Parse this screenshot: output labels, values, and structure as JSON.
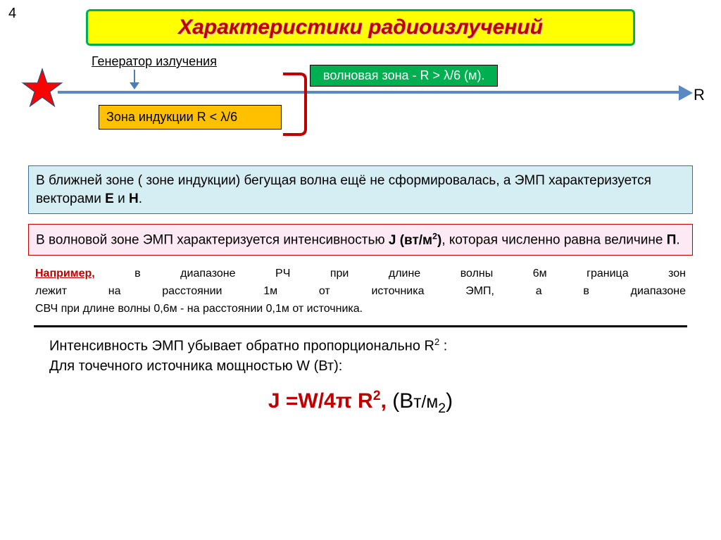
{
  "page_number": "4",
  "title": {
    "text": "Характеристики радиоизлучений",
    "bg_color": "#ffff00",
    "border_color": "#00b050",
    "text_color": "#c00000",
    "shadow_color": "#aaaaaa",
    "font_size": 30
  },
  "diagram": {
    "generator_label": "Генератор  излучения",
    "generator_arrow_color": "#4a7ebb",
    "star_fill": "#ff0000",
    "star_stroke": "#1f4e79",
    "axis_color": "#5a8ac6",
    "axis_label": "R",
    "wave_zone": {
      "text": "волновая зона - R >  λ/6 (м).",
      "bg_color": "#00b050",
      "text_color": "#ffffff",
      "border_color": "#000000"
    },
    "induction_zone": {
      "text": "Зона индукции R < λ/6",
      "bg_color": "#ffc000",
      "text_color": "#000000",
      "border_color": "#000000"
    },
    "bracket_color": "#c00000"
  },
  "near_zone_box": {
    "html": "В ближней зоне ( зоне индукции) бегущая волна ещё не сформировалась, а ЭМП    характеризуется векторами <b>Е</b> и <b>Н</b>.",
    "bg_color": "#d4eef4",
    "border_color": "#3a6ea5"
  },
  "wave_zone_box": {
    "html": "В волновой зоне ЭМП характеризуется  интенсивностью   <b>J  (вт/м<span class=\"sup\">2</span>)</b>, которая численно равна величине <b>П</b>.",
    "bg_color": "#fde9f3",
    "border_color": "#c00000"
  },
  "example": {
    "lead": "Например,",
    "line1_rest": "    в    диапазоне    РЧ    при    длине    волны    6м    граница    зон",
    "line2": "лежит    на    расстоянии    1м    от    источника    ЭМП,    а    в    диапазоне",
    "line3": "СВЧ при длине волны 0,6м - на расстоянии 0,1м от источника.",
    "text_color": "#000000"
  },
  "intensity": {
    "html": "Интенсивность ЭМП убывает обратно пропорционально R<span class=\"sup\">2</span> :<br>Для точечного источника мощностью W (Вт):"
  },
  "formula": {
    "red_html": "J =W/4&pi; R<span class=\"sup\">2</span>,",
    "red_color": "#c00000",
    "black_html": "  (В<span style=\"font-size:0.82em\">т/м</span><span class=\"sub\">2</span>)",
    "font_size": 30
  }
}
